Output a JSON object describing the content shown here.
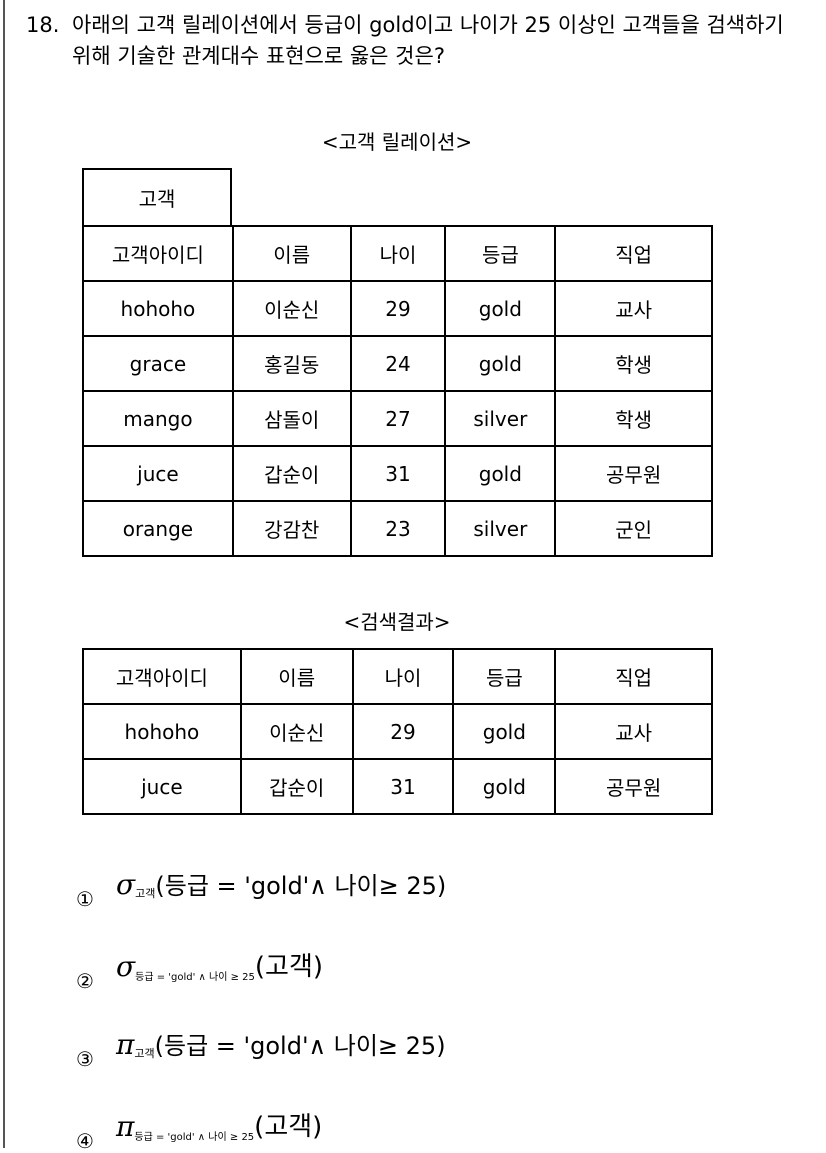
{
  "question": {
    "number": "18.",
    "text": "아래의 고객 릴레이션에서 등급이 gold이고 나이가 25 이상인 고객들을 검색하기 위해 기술한 관계대수 표현으로 옳은 것은?"
  },
  "relation": {
    "caption": "<고객 릴레이션>",
    "name": "고객",
    "columns": [
      "고객아이디",
      "이름",
      "나이",
      "등급",
      "직업"
    ],
    "rows": [
      [
        "hohoho",
        "이순신",
        "29",
        "gold",
        "교사"
      ],
      [
        "grace",
        "홍길동",
        "24",
        "gold",
        "학생"
      ],
      [
        "mango",
        "삼돌이",
        "27",
        "silver",
        "학생"
      ],
      [
        "juce",
        "갑순이",
        "31",
        "gold",
        "공무원"
      ],
      [
        "orange",
        "강감찬",
        "23",
        "silver",
        "군인"
      ]
    ]
  },
  "result": {
    "caption": "<검색결과>",
    "columns": [
      "고객아이디",
      "이름",
      "나이",
      "등급",
      "직업"
    ],
    "rows": [
      [
        "hohoho",
        "이순신",
        "29",
        "gold",
        "교사"
      ],
      [
        "juce",
        "갑순이",
        "31",
        "gold",
        "공무원"
      ]
    ]
  },
  "options": [
    {
      "marker": "①",
      "symbol": "σ",
      "subscript": "고객",
      "body": "(등급 = 'gold'∧ 나이≥ 25)"
    },
    {
      "marker": "②",
      "symbol": "σ",
      "subscript": "등급 = 'gold' ∧ 나이 ≥ 25",
      "body": "(고객)"
    },
    {
      "marker": "③",
      "symbol": "π",
      "subscript": "고객",
      "body": "(등급 = 'gold'∧ 나이≥ 25)"
    },
    {
      "marker": "④",
      "symbol": "π",
      "subscript": "등급 = 'gold' ∧ 나이 ≥ 25",
      "body": "(고객)"
    }
  ]
}
